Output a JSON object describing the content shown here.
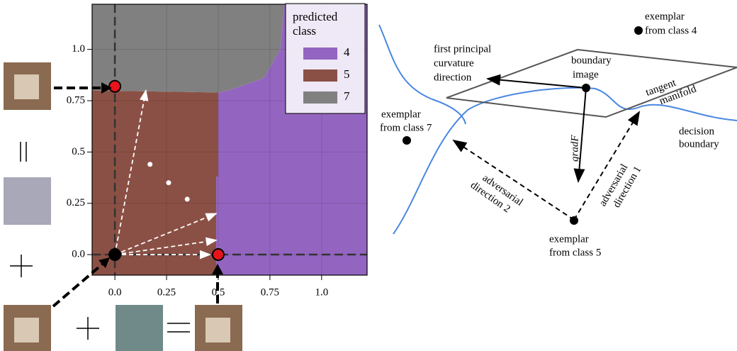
{
  "chart_data": {
    "type": "region",
    "xlim": [
      -0.11,
      1.22
    ],
    "ylim": [
      -0.1,
      1.22
    ],
    "xticks": [
      {
        "value": 0,
        "label": "0.0"
      },
      0.25,
      {
        "value": 0.5,
        "label": "0.5"
      },
      0.75,
      {
        "value": 1,
        "label": "1.0"
      }
    ],
    "yticks": [
      {
        "value": 0,
        "label": "0.0"
      },
      0.25,
      {
        "value": 0.5,
        "label": "0.5"
      },
      0.75,
      {
        "value": 1,
        "label": "1.0"
      }
    ],
    "grid": true,
    "crosshair": [
      0,
      0
    ],
    "legend_title": [
      "predicted",
      "class"
    ],
    "regions": [
      {
        "name": "4",
        "color": "#9365c0",
        "polygon": [
          [
            0.5,
            0.79
          ],
          [
            0.55,
            0.8
          ],
          [
            0.72,
            0.86
          ],
          [
            0.8,
            1.0
          ],
          [
            0.82,
            1.22
          ],
          [
            1.22,
            1.22
          ],
          [
            1.22,
            -0.1
          ],
          [
            0.49,
            -0.1
          ],
          [
            0.49,
            0.38
          ],
          [
            0.5,
            0.38
          ]
        ]
      },
      {
        "name": "5",
        "color": "#8b5045",
        "polygon": [
          [
            -0.11,
            0.8
          ],
          [
            0.5,
            0.79
          ],
          [
            0.5,
            0.38
          ],
          [
            0.49,
            0.38
          ],
          [
            0.49,
            -0.1
          ],
          [
            -0.11,
            -0.1
          ]
        ]
      },
      {
        "name": "7",
        "color": "#808080",
        "polygon": [
          [
            -0.11,
            1.22
          ],
          [
            0.82,
            1.22
          ],
          [
            0.8,
            1.0
          ],
          [
            0.72,
            0.86
          ],
          [
            0.55,
            0.8
          ],
          [
            0.5,
            0.79
          ],
          [
            -0.11,
            0.8
          ]
        ]
      }
    ],
    "arrows": {
      "x": [
        0.15,
        0.49,
        0.49,
        0.46
      ],
      "y": [
        0.8,
        0.2,
        0.07,
        0.0
      ]
    },
    "markers": [
      {
        "color": "#e8141c",
        "x": [
          0,
          0.5
        ],
        "y": [
          0.82,
          0
        ]
      },
      {
        "color": "#000000",
        "x": [
          0
        ],
        "y": [
          0
        ]
      },
      {
        "color": "#ffffff",
        "x": [
          0.17,
          0.26,
          0.35
        ],
        "y": [
          0.44,
          0.35,
          0.27
        ]
      }
    ]
  },
  "diagram": {
    "labels": {
      "exemplar4": [
        "exemplar",
        "from class 4"
      ],
      "curvature": [
        "first principal",
        "curvature",
        "direction"
      ],
      "boundary_image": [
        "boundary",
        "image"
      ],
      "tangent": [
        "tangent",
        "manifold"
      ],
      "exemplar7": [
        "exemplar",
        "from class 7"
      ],
      "decision": [
        "decision",
        "boundary"
      ],
      "grad": "gradF",
      "adv2": [
        "adversarial",
        "direction 2"
      ],
      "adv1": [
        "adversarial",
        "direction 1"
      ],
      "exemplar5": [
        "exemplar",
        "from class 5"
      ]
    }
  }
}
